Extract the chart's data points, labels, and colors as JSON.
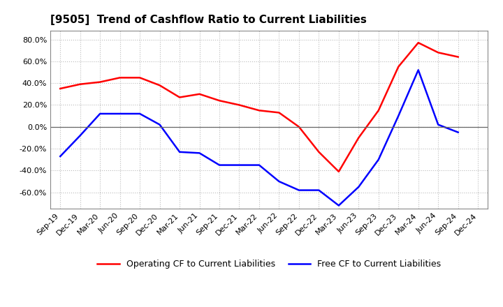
{
  "title": "[9505]  Trend of Cashflow Ratio to Current Liabilities",
  "x_labels": [
    "Sep-19",
    "Dec-19",
    "Mar-20",
    "Jun-20",
    "Sep-20",
    "Dec-20",
    "Mar-21",
    "Jun-21",
    "Sep-21",
    "Dec-21",
    "Mar-22",
    "Jun-22",
    "Sep-22",
    "Dec-22",
    "Mar-23",
    "Jun-23",
    "Sep-23",
    "Dec-23",
    "Mar-24",
    "Jun-24",
    "Sep-24",
    "Dec-24"
  ],
  "operating_cf": [
    0.35,
    0.39,
    0.41,
    0.45,
    0.45,
    0.38,
    0.27,
    0.3,
    0.24,
    0.2,
    0.15,
    0.13,
    0.0,
    -0.23,
    -0.41,
    -0.1,
    0.15,
    0.55,
    0.77,
    0.68,
    0.64,
    null
  ],
  "free_cf": [
    -0.27,
    -0.08,
    0.12,
    0.12,
    0.12,
    0.02,
    -0.23,
    -0.24,
    -0.35,
    -0.35,
    -0.35,
    -0.5,
    -0.58,
    -0.58,
    -0.72,
    -0.55,
    -0.3,
    0.1,
    0.52,
    0.02,
    -0.05,
    null
  ],
  "ylim": [
    -0.75,
    0.88
  ],
  "yticks": [
    -0.6,
    -0.4,
    -0.2,
    0.0,
    0.2,
    0.4,
    0.6,
    0.8
  ],
  "operating_color": "#FF0000",
  "free_color": "#0000FF",
  "background_color": "#FFFFFF",
  "grid_color": "#BBBBBB",
  "legend_operating": "Operating CF to Current Liabilities",
  "legend_free": "Free CF to Current Liabilities",
  "title_fontsize": 11,
  "axis_fontsize": 8,
  "legend_fontsize": 9
}
